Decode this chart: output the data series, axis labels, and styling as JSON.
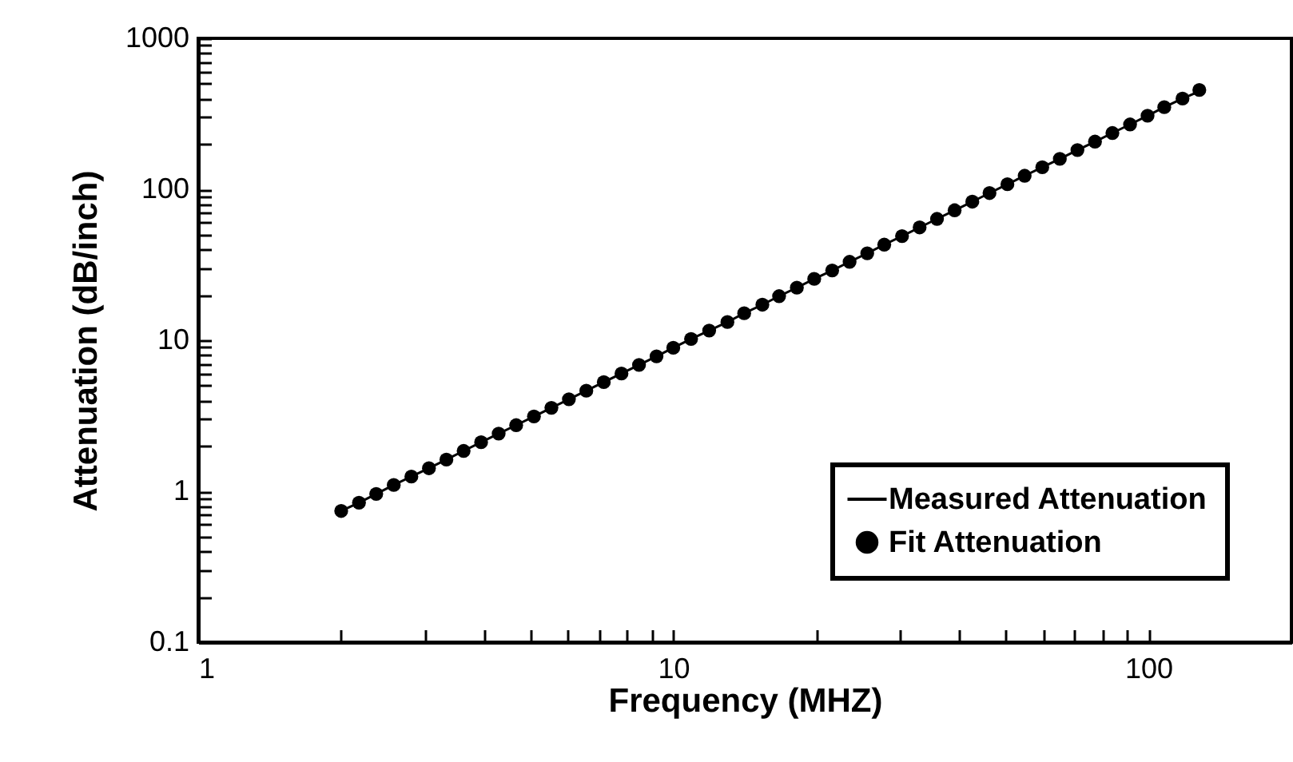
{
  "chart_data": {
    "type": "scatter",
    "xlabel": "Frequency (MHZ)",
    "ylabel": "Attenuation (dB/inch)",
    "log": "xy",
    "legend": "bottom right",
    "x": [
      2.0,
      2.18,
      2.37,
      2.58,
      2.81,
      3.06,
      3.33,
      3.62,
      3.94,
      4.29,
      4.67,
      5.09,
      5.54,
      6.03,
      6.56,
      7.14,
      7.78,
      8.47,
      9.22,
      10.0,
      10.9,
      11.9,
      13.0,
      14.1,
      15.4,
      16.7,
      18.2,
      19.8,
      21.6,
      23.5,
      25.6,
      27.8,
      30.3,
      33.0,
      35.9,
      39.1,
      42.6,
      46.3,
      50.5,
      54.9,
      59.8,
      65.1,
      70.9,
      77.2,
      84.0,
      91.5,
      99.6,
      108,
      118,
      128
    ],
    "series": [
      {
        "name": "Measured Attenuation",
        "type": "line",
        "color": "#000000",
        "line_style": "solid",
        "values": [
          0.74,
          0.84,
          0.96,
          1.1,
          1.25,
          1.42,
          1.62,
          1.85,
          2.11,
          2.41,
          2.74,
          3.13,
          3.57,
          4.07,
          4.63,
          5.28,
          6.02,
          6.87,
          7.83,
          8.92,
          10.2,
          11.6,
          13.2,
          15.1,
          17.2,
          19.6,
          22.3,
          25.5,
          29.0,
          33.1,
          37.7,
          43.0,
          49.0,
          55.9,
          63.7,
          72.6,
          82.8,
          94.4,
          108,
          123,
          140,
          159,
          182,
          207,
          236,
          269,
          307,
          350,
          399,
          445
        ]
      },
      {
        "name": "Fit Attenuation",
        "marker": "circle",
        "color": "#000000",
        "values": [
          0.74,
          0.84,
          0.96,
          1.1,
          1.25,
          1.42,
          1.62,
          1.85,
          2.11,
          2.41,
          2.74,
          3.13,
          3.57,
          4.07,
          4.63,
          5.28,
          6.02,
          6.87,
          7.83,
          8.92,
          10.2,
          11.6,
          13.2,
          15.1,
          17.2,
          19.6,
          22.3,
          25.5,
          29.0,
          33.1,
          37.7,
          43.0,
          49.0,
          55.9,
          63.7,
          72.6,
          82.8,
          94.4,
          108,
          123,
          140,
          159,
          182,
          207,
          236,
          269,
          307,
          350,
          399,
          455
        ]
      }
    ],
    "xlim": [
      1,
      200
    ],
    "xticks": [
      1,
      {
        "value": 2,
        "label": null
      },
      {
        "value": 3,
        "label": null
      },
      {
        "value": 4,
        "label": null
      },
      {
        "value": 5,
        "label": null
      },
      {
        "value": 6,
        "label": null
      },
      {
        "value": 7,
        "label": null
      },
      {
        "value": 8,
        "label": null
      },
      {
        "value": 9,
        "label": null
      },
      10,
      {
        "value": 20,
        "label": null
      },
      {
        "value": 30,
        "label": null
      },
      {
        "value": 40,
        "label": null
      },
      {
        "value": 50,
        "label": null
      },
      {
        "value": 60,
        "label": null
      },
      {
        "value": 70,
        "label": null
      },
      {
        "value": 80,
        "label": null
      },
      {
        "value": 90,
        "label": null
      },
      100,
      {
        "value": 200,
        "label": null
      }
    ],
    "ylim": [
      0.1,
      1000
    ],
    "yticks": [
      0.1,
      {
        "value": 0.2,
        "label": null
      },
      {
        "value": 0.3,
        "label": null
      },
      {
        "value": 0.4,
        "label": null
      },
      {
        "value": 0.5,
        "label": null
      },
      {
        "value": 0.6,
        "label": null
      },
      {
        "value": 0.7,
        "label": null
      },
      {
        "value": 0.8,
        "label": null
      },
      {
        "value": 0.9,
        "label": null
      },
      1,
      {
        "value": 2,
        "label": null
      },
      {
        "value": 3,
        "label": null
      },
      {
        "value": 4,
        "label": null
      },
      {
        "value": 5,
        "label": null
      },
      {
        "value": 6,
        "label": null
      },
      {
        "value": 7,
        "label": null
      },
      {
        "value": 8,
        "label": null
      },
      {
        "value": 9,
        "label": null
      },
      10,
      {
        "value": 20,
        "label": null
      },
      {
        "value": 30,
        "label": null
      },
      {
        "value": 40,
        "label": null
      },
      {
        "value": 50,
        "label": null
      },
      {
        "value": 60,
        "label": null
      },
      {
        "value": 70,
        "label": null
      },
      {
        "value": 80,
        "label": null
      },
      {
        "value": 90,
        "label": null
      },
      100,
      {
        "value": 200,
        "label": null
      },
      {
        "value": 300,
        "label": null
      },
      {
        "value": 400,
        "label": null
      },
      {
        "value": 500,
        "label": null
      },
      {
        "value": 600,
        "label": null
      },
      {
        "value": 700,
        "label": null
      },
      {
        "value": 800,
        "label": null
      },
      {
        "value": 900,
        "label": null
      },
      1000
    ]
  }
}
